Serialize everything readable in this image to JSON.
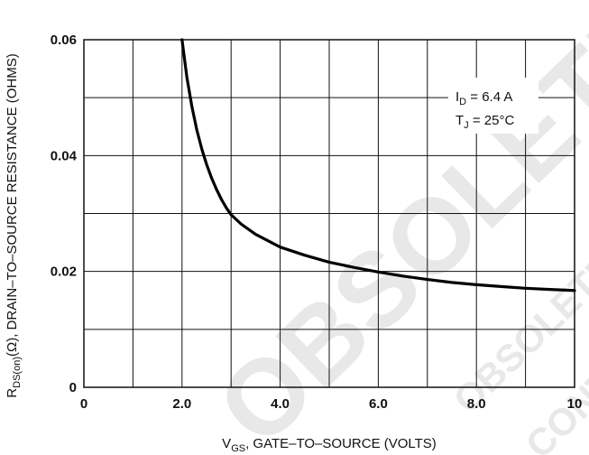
{
  "chart_data": {
    "type": "line",
    "xlabel_main": "V",
    "xlabel_sub": "GS",
    "xlabel_rest": ", GATE–TO–SOURCE (VOLTS)",
    "ylabel_main": "R",
    "ylabel_sub": "DS(on)",
    "ylabel_rest": "(Ω), DRAIN–TO–SOURCE RESISTANCE (OHMS)",
    "xlim": [
      0,
      10
    ],
    "ylim": [
      0,
      0.06
    ],
    "x_ticks": [
      0,
      2,
      4,
      6,
      8,
      10
    ],
    "x_tick_labels": [
      "0",
      "2.0",
      "4.0",
      "6.0",
      "8.0",
      "10"
    ],
    "y_ticks": [
      0,
      0.02,
      0.04,
      0.06
    ],
    "y_tick_labels": [
      "0",
      "0.02",
      "0.04",
      "0.06"
    ],
    "grid": true,
    "series": [
      {
        "x": [
          2.0,
          2.1,
          2.2,
          2.3,
          2.4,
          2.5,
          2.6,
          2.7,
          2.8,
          2.9,
          3.0,
          3.2,
          3.5,
          4.0,
          4.5,
          5.0,
          5.5,
          6.0,
          6.5,
          7.0,
          7.5,
          8.0,
          8.5,
          9.0,
          9.5,
          10.0
        ],
        "y": [
          0.06,
          0.0535,
          0.0485,
          0.0445,
          0.0412,
          0.0385,
          0.0362,
          0.0342,
          0.0325,
          0.031,
          0.0298,
          0.0282,
          0.0264,
          0.0242,
          0.0228,
          0.0216,
          0.0207,
          0.0199,
          0.0192,
          0.0186,
          0.0181,
          0.0177,
          0.0174,
          0.0171,
          0.0169,
          0.0167
        ]
      }
    ],
    "annotation": {
      "line1_main": "I",
      "line1_sub": "D",
      "line1_rest": " = 6.4 A",
      "line2_main": "T",
      "line2_sub": "J",
      "line2_rest": " = 25°C"
    }
  },
  "watermark": {
    "main": "OBSOLETE",
    "line2": "OBSOLETE DEVICE",
    "line3": "CONTACT VISHAY"
  }
}
